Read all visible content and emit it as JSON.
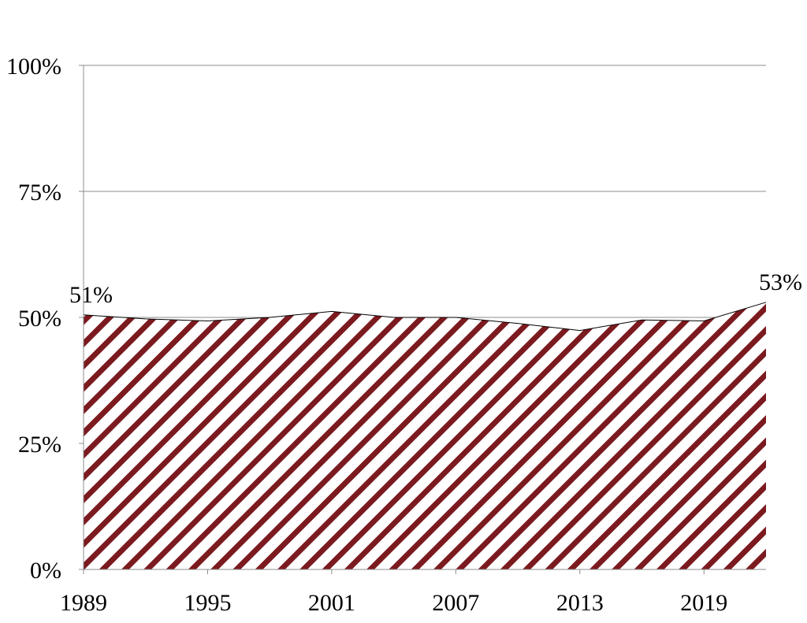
{
  "chart_data": {
    "type": "area",
    "title": "",
    "xlabel": "",
    "ylabel": "",
    "x": [
      1989,
      1992,
      1995,
      1998,
      2001,
      2004,
      2007,
      2010,
      2013,
      2016,
      2019,
      2022
    ],
    "series": [
      {
        "values": [
          0.505,
          0.497,
          0.493,
          0.5,
          0.512,
          0.5,
          0.5,
          0.488,
          0.474,
          0.495,
          0.493,
          0.53
        ]
      }
    ],
    "xlim": [
      1989,
      2022
    ],
    "ylim": [
      0,
      1
    ],
    "y_ticks": [
      {
        "value": 0,
        "label": "0%"
      },
      {
        "value": 0.25,
        "label": "25%"
      },
      {
        "value": 0.5,
        "label": "50%"
      },
      {
        "value": 0.75,
        "label": "75%"
      },
      {
        "value": 1,
        "label": "100%"
      }
    ],
    "x_ticks": [
      {
        "value": 1989,
        "label": "1989"
      },
      {
        "value": 1995,
        "label": "1995"
      },
      {
        "value": 2001,
        "label": "2001"
      },
      {
        "value": 2007,
        "label": "2007"
      },
      {
        "value": 2013,
        "label": "2013"
      },
      {
        "value": 2019,
        "label": "2019"
      }
    ],
    "data_labels": [
      {
        "x": 1989,
        "y": 0.505,
        "text": "51%"
      },
      {
        "x": 2022,
        "y": 0.53,
        "text": "53%"
      }
    ],
    "grid": true,
    "legend": "none",
    "fill_pattern": "diagonal-stripes",
    "colors": {
      "stripe": "#7b1a1f",
      "background": "#ffffff",
      "grid": "#8c8c8c"
    }
  }
}
